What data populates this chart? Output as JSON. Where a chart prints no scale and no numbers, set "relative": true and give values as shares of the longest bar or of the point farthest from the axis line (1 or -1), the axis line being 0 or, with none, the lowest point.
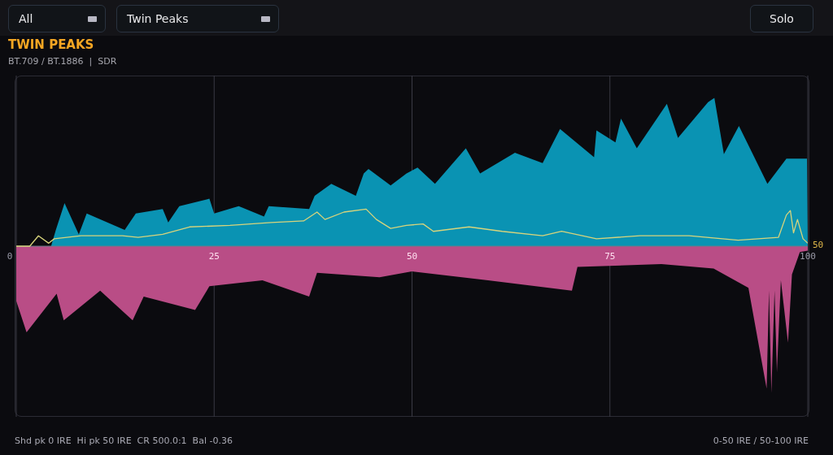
{
  "chart_data": {
    "type": "area",
    "title": "TWIN PEAKS",
    "subtitle": "BT.709 / BT.1886  |  SDR",
    "relative": true,
    "xlim": [
      0,
      100
    ],
    "xticks": [
      0,
      25,
      50,
      75,
      100
    ],
    "grid": "x",
    "legend": false,
    "annotations": [
      "All",
      "Twin Peaks",
      "Solo",
      "Shd pk 0 IRE  Hi pk 50 IRE  CR 500.0:1  Bal -0.36",
      "0-50 IRE / 50-100 IRE",
      {
        "text": "50",
        "x": 100,
        "y": 0
      }
    ],
    "series": [
      {
        "type": "area",
        "color": "#0a93b3",
        "x": [
          0,
          4.4,
          5.0,
          6.1,
          7.9,
          8.9,
          13.7,
          15.1,
          18.5,
          19.2,
          20.6,
          24.4,
          25.0,
          28.1,
          31.3,
          31.9,
          37.0,
          37.7,
          39.8,
          42.9,
          43.9,
          44.5,
          47.3,
          49.3,
          50.7,
          52.9,
          56.8,
          58.6,
          63.0,
          66.5,
          68.7,
          73.0,
          73.3,
          75.7,
          76.4,
          78.4,
          82.2,
          83.6,
          87.4,
          88.2,
          89.4,
          91.3,
          94.9,
          97.3,
          99.9,
          100
        ],
        "values": [
          0,
          0,
          0.11,
          0.29,
          0.08,
          0.22,
          0.11,
          0.22,
          0.25,
          0.16,
          0.27,
          0.32,
          0.22,
          0.27,
          0.2,
          0.27,
          0.25,
          0.34,
          0.42,
          0.34,
          0.49,
          0.52,
          0.41,
          0.49,
          0.53,
          0.42,
          0.66,
          0.49,
          0.63,
          0.56,
          0.79,
          0.6,
          0.78,
          0.7,
          0.86,
          0.66,
          0.96,
          0.73,
          0.97,
          1,
          0.62,
          0.81,
          0.42,
          0.59,
          0.59,
          0
        ]
      },
      {
        "type": "area",
        "color": "#b94d86",
        "x": [
          0,
          1.3,
          5.1,
          6.0,
          10.6,
          14.7,
          16.1,
          22.6,
          24.4,
          31.1,
          37.0,
          38.0,
          45.9,
          50.0,
          59.6,
          70.2,
          70.9,
          81.5,
          88.1,
          92.5,
          94.8,
          95.1,
          95.4,
          95.8,
          96.1,
          96.6,
          97.5,
          98.0,
          99.0,
          100
        ],
        "values": [
          -0.37,
          -0.58,
          -0.32,
          -0.5,
          -0.3,
          -0.5,
          -0.34,
          -0.43,
          -0.27,
          -0.23,
          -0.34,
          -0.18,
          -0.21,
          -0.17,
          -0.23,
          -0.3,
          -0.14,
          -0.12,
          -0.15,
          -0.28,
          -0.96,
          -0.3,
          -0.99,
          -0.3,
          -0.85,
          -0.23,
          -0.65,
          -0.19,
          -0.04,
          -0.03
        ]
      },
      {
        "type": "line",
        "color": "#d8d47c",
        "x": [
          0,
          1.7,
          2.8,
          4.1,
          4.8,
          8.2,
          13.4,
          15.4,
          18.5,
          21.9,
          27,
          32.2,
          36.3,
          38,
          39,
          41.4,
          44.2,
          45.5,
          47.3,
          49.3,
          51.4,
          52.7,
          57.2,
          61.4,
          66.5,
          68.9,
          73.3,
          78.8,
          85,
          91.2,
          96.3,
          97.3,
          97.8,
          98.2,
          98.7,
          99.4,
          100
        ],
        "values": [
          0,
          0,
          0.07,
          0.02,
          0.05,
          0.07,
          0.07,
          0.06,
          0.08,
          0.13,
          0.14,
          0.16,
          0.17,
          0.23,
          0.18,
          0.23,
          0.25,
          0.18,
          0.12,
          0.14,
          0.15,
          0.1,
          0.13,
          0.1,
          0.07,
          0.1,
          0.05,
          0.07,
          0.07,
          0.04,
          0.06,
          0.21,
          0.24,
          0.09,
          0.18,
          0.05,
          0.02
        ]
      }
    ]
  }
}
